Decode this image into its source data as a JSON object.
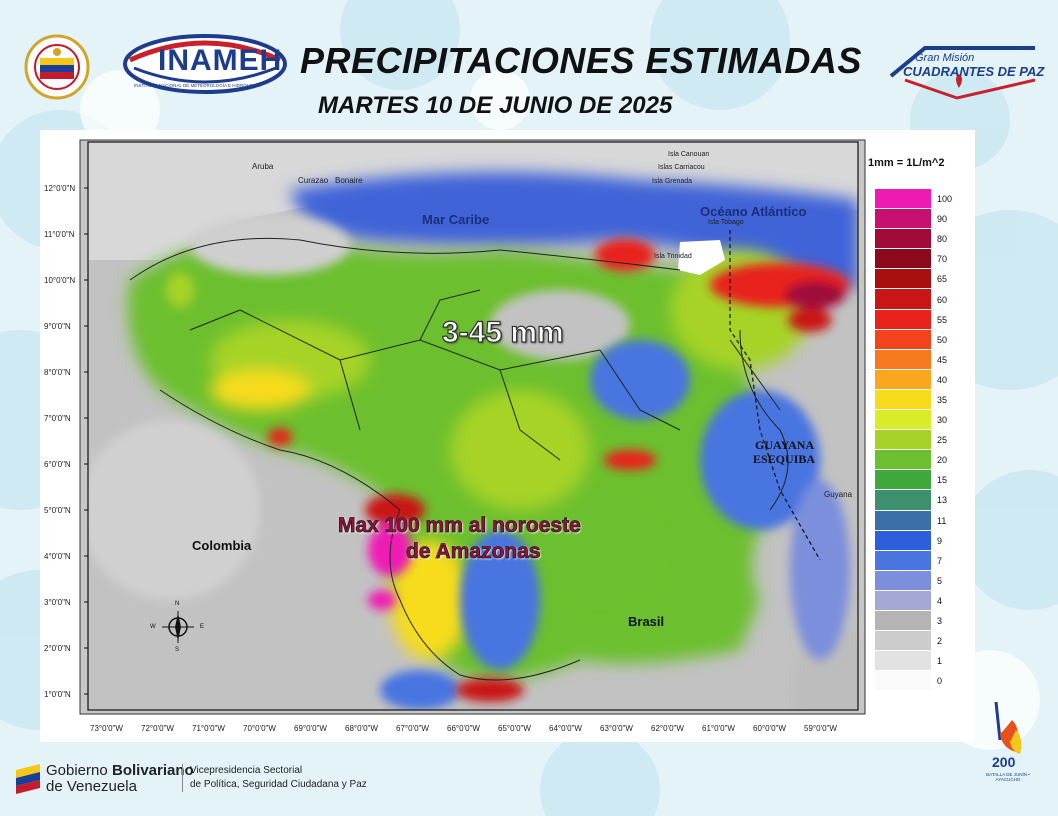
{
  "header": {
    "title": "PRECIPITACIONES ESTIMADAS",
    "subtitle": "MARTES 10 DE JUNIO DE 2025",
    "inameh_logo_text": "INAMEH",
    "inameh_logo_sub": "INSTITUTO NACIONAL DE METEOROLOGÍA E HIDROLOGÍA",
    "ministry_seal_text": "Ministerio del Poder Popular para Relaciones Interiores, Justicia y Paz",
    "gran_mision_line1": "Gran Misión",
    "gran_mision_line2": "CUADRANTES DE PAZ"
  },
  "map": {
    "lat_labels": [
      "12°0'0\"N",
      "11°0'0\"N",
      "10°0'0\"N",
      "9°0'0\"N",
      "8°0'0\"N",
      "7°0'0\"N",
      "6°0'0\"N",
      "5°0'0\"N",
      "4°0'0\"N",
      "3°0'0\"N",
      "2°0'0\"N",
      "1°0'0\"N"
    ],
    "lon_labels": [
      "73°0'0\"W",
      "72°0'0\"W",
      "71°0'0\"W",
      "70°0'0\"W",
      "69°0'0\"W",
      "68°0'0\"W",
      "67°0'0\"W",
      "66°0'0\"W",
      "65°0'0\"W",
      "64°0'0\"W",
      "63°0'0\"W",
      "62°0'0\"W",
      "61°0'0\"W",
      "60°0'0\"W",
      "59°0'0\"W"
    ],
    "place_labels": {
      "aruba": "Aruba",
      "curazao": "Curazao",
      "bonaire": "Bonaire",
      "isla_canouan": "Isla Canouan",
      "islas_carriacou": "Islas Carriacou",
      "isla_grenada": "Isla Grenada",
      "isla_tobago": "Isla Tobago",
      "isla_trinidad": "Isla Trinidad",
      "mar_caribe": "Mar Caribe",
      "oceano_atlantico": "Océano Atlántico",
      "colombia": "Colombia",
      "brasil": "Brasil",
      "guyana": "Guyana",
      "guayana_esequiba_1": "GUAYANA",
      "guayana_esequiba_2": "ESEQUIBA"
    },
    "annotations": {
      "range": "3-45 mm",
      "max_line1": "Max 100 mm al noroeste",
      "max_line2": "de Amazonas"
    },
    "compass": {
      "n": "N",
      "s": "S",
      "e": "E",
      "w": "W"
    }
  },
  "legend": {
    "unit": "1mm = 1L/m^2",
    "items": [
      {
        "label": "100",
        "color": "#ee1ab4"
      },
      {
        "label": "90",
        "color": "#c8106e"
      },
      {
        "label": "80",
        "color": "#a00b3a"
      },
      {
        "label": "70",
        "color": "#8a0a1c"
      },
      {
        "label": "65",
        "color": "#a81010"
      },
      {
        "label": "60",
        "color": "#c91515"
      },
      {
        "label": "55",
        "color": "#e8231b"
      },
      {
        "label": "50",
        "color": "#f2431d"
      },
      {
        "label": "45",
        "color": "#f77a21"
      },
      {
        "label": "40",
        "color": "#f8a71f"
      },
      {
        "label": "35",
        "color": "#f7dc1d"
      },
      {
        "label": "30",
        "color": "#d9ec2a"
      },
      {
        "label": "25",
        "color": "#a6d328"
      },
      {
        "label": "20",
        "color": "#6cbf2e"
      },
      {
        "label": "15",
        "color": "#3ea83b"
      },
      {
        "label": "13",
        "color": "#3d8f6e"
      },
      {
        "label": "11",
        "color": "#3b6fa8"
      },
      {
        "label": "9",
        "color": "#2d5fdc"
      },
      {
        "label": "7",
        "color": "#4a74e0"
      },
      {
        "label": "5",
        "color": "#7b8fdc"
      },
      {
        "label": "4",
        "color": "#a3a9d4"
      },
      {
        "label": "3",
        "color": "#b4b4b4"
      },
      {
        "label": "2",
        "color": "#cccccc"
      },
      {
        "label": "1",
        "color": "#e2e2e2"
      },
      {
        "label": "0",
        "color": "#fafafa"
      }
    ]
  },
  "footer": {
    "gobierno_line1_a": "Gobierno ",
    "gobierno_line1_b": "Bolivariano",
    "gobierno_line2": "de Venezuela",
    "vice_line1": "Vicepresidencia Sectorial",
    "vice_line2": "de Política, Seguridad Ciudadana y Paz",
    "bicentenario_number": "200",
    "bicentenario_text": "BATALLA DE JUNÍN • AYACUCHO"
  }
}
